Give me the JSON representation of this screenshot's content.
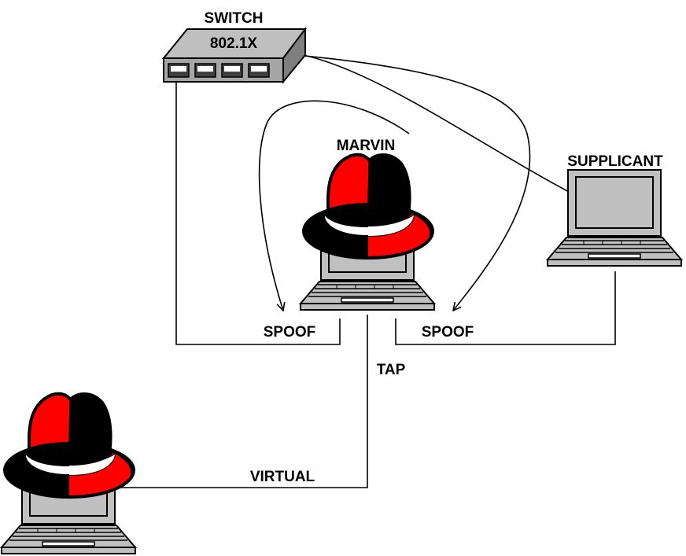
{
  "labels": {
    "switch": "SWITCH",
    "switch_model": "802.1X",
    "marvin": "MARVIN",
    "supplicant": "SUPPLICANT",
    "spoof_left": "SPOOF",
    "spoof_right": "SPOOF",
    "tap": "TAP",
    "virtual": "VIRTUAL"
  },
  "colors": {
    "hat_red": "#ff0000",
    "hat_black": "#000000",
    "laptop_gray": "#c0c0c0",
    "switch_gray": "#a6a6a6",
    "line": "#000000"
  },
  "icons": {
    "switch": "network-switch-icon",
    "laptop": "laptop-icon",
    "hat": "red-hat-icon"
  }
}
